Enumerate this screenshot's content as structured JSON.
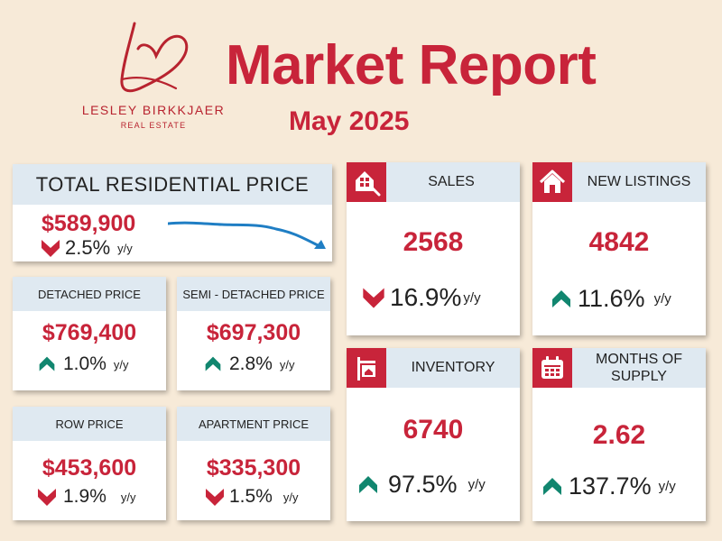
{
  "brand": {
    "name": "LESLEY BIRKKJAER",
    "sub": "REAL ESTATE"
  },
  "title": "Market Report",
  "subtitle": "May 2025",
  "colors": {
    "accent": "#c8243a",
    "header": "#dfe9f1",
    "up": "#11866f",
    "down": "#c8243a",
    "trend": "#1f7ec4"
  },
  "total": {
    "label": "TOTAL RESIDENTIAL PRICE",
    "value": "$589,900",
    "change": "2.5%",
    "unit": "y/y",
    "direction": "down",
    "trend_icon": "trend-line-down"
  },
  "detached": {
    "label": "DETACHED PRICE",
    "value": "$769,400",
    "change": "1.0%",
    "unit": "y/y",
    "direction": "up"
  },
  "semi": {
    "label": "SEMI - DETACHED PRICE",
    "value": "$697,300",
    "change": "2.8%",
    "unit": "y/y",
    "direction": "up"
  },
  "row": {
    "label": "ROW PRICE",
    "value": "$453,600",
    "change": "1.9%",
    "unit": "y/y",
    "direction": "down"
  },
  "apartment": {
    "label": "APARTMENT PRICE",
    "value": "$335,300",
    "change": "1.5%",
    "unit": "y/y",
    "direction": "down"
  },
  "sales": {
    "label": "SALES",
    "value": "2568",
    "change": "16.9%",
    "unit": "y/y",
    "direction": "down",
    "icon": "house-tag-icon"
  },
  "new_listings": {
    "label": "NEW LISTINGS",
    "value": "4842",
    "change": "11.6%",
    "unit": "y/y",
    "direction": "up",
    "icon": "house-icon"
  },
  "inventory": {
    "label": "INVENTORY",
    "value": "6740",
    "change": "97.5%",
    "unit": "y/y",
    "direction": "up",
    "icon": "house-sign-icon"
  },
  "months_supply": {
    "label_line1": "MONTHS OF",
    "label_line2": "SUPPLY",
    "value": "2.62",
    "change": "137.7%",
    "unit": "y/y",
    "direction": "up",
    "icon": "calendar-icon"
  }
}
